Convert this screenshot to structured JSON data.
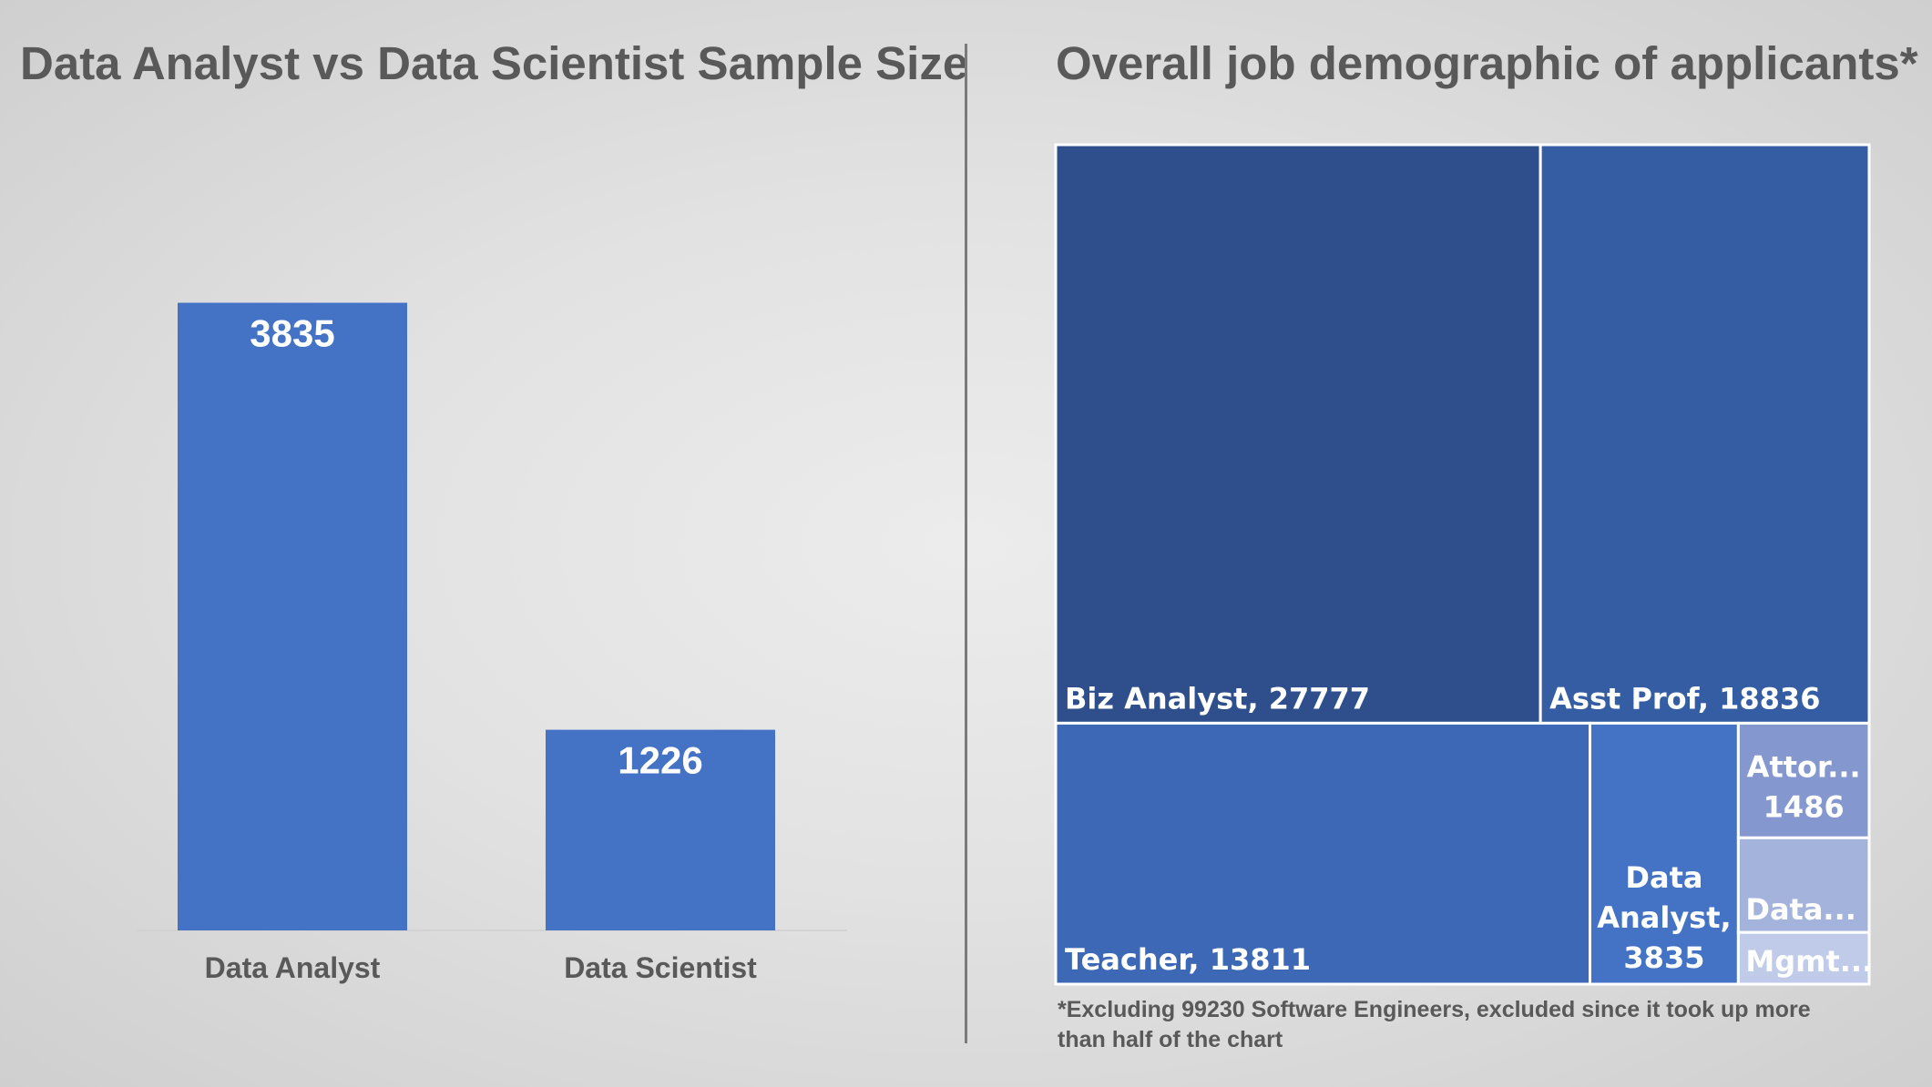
{
  "left_title": "Data Analyst vs Data Scientist Sample Size",
  "right_title": "Overall job demographic of applicants*",
  "footnote": "*Excluding 99230 Software Engineers, excluded since it took up more than half of the chart",
  "colors": {
    "bar": "#4472c4",
    "treemap": [
      "#2e4f8c",
      "#345da4",
      "#3d68b5",
      "#4472c4",
      "#8497cf",
      "#a4b3dc",
      "#bfcbe9"
    ]
  },
  "chart_data": [
    {
      "type": "bar",
      "title": "Data Analyst vs Data Scientist Sample Size",
      "categories": [
        "Data Analyst",
        "Data Scientist"
      ],
      "values": [
        3835,
        1226
      ],
      "data_labels": [
        "3835",
        "1226"
      ],
      "ylim": [
        0,
        4400
      ],
      "grid": false,
      "legend": "none"
    },
    {
      "type": "treemap",
      "title": "Overall job demographic of applicants*",
      "items": [
        {
          "name": "Biz Analyst",
          "value": 27777,
          "label": [
            "Biz Analyst, 27777"
          ]
        },
        {
          "name": "Asst Prof",
          "value": 18836,
          "label": [
            "Asst Prof, 18836"
          ]
        },
        {
          "name": "Teacher",
          "value": 13811,
          "label": [
            "Teacher, 13811"
          ]
        },
        {
          "name": "Data Analyst",
          "value": 3835,
          "label": [
            "Data",
            "Analyst,",
            "3835"
          ]
        },
        {
          "name": "Attor...",
          "value": 1486,
          "label": [
            "Attor...",
            "1486"
          ]
        },
        {
          "name": "Data...",
          "value": 1226,
          "label": [
            "Data..."
          ]
        },
        {
          "name": "Mgmt...",
          "value": 670,
          "label": [
            "Mgmt..."
          ]
        }
      ]
    }
  ]
}
